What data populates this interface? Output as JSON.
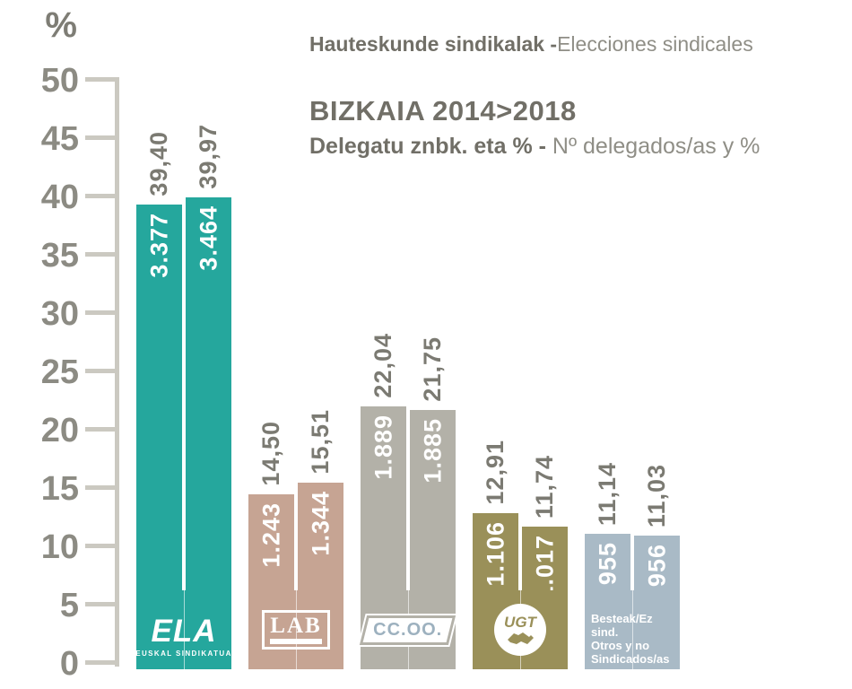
{
  "axis": {
    "unit": "%",
    "ticks": [
      "50",
      "45",
      "40",
      "35",
      "30",
      "25",
      "20",
      "15",
      "10",
      "5",
      "0"
    ]
  },
  "header": {
    "line1_bold": "Hauteskunde sindikalak -",
    "line1_regular": "Elecciones sindicales",
    "title": "BIZKAIA 2014>2018",
    "subtitle_bold": "Delegatu znbk. eta % - ",
    "subtitle_regular": "Nº delegados/as y %"
  },
  "chart_data": {
    "type": "bar",
    "title": "BIZKAIA 2014>2018",
    "subtitle": "Delegatu znbk. eta % - Nº delegados/as y %",
    "caption": "Hauteskunde sindikalak - Elecciones sindicales",
    "ylabel": "%",
    "ylim": [
      0,
      50
    ],
    "yticks": [
      50,
      45,
      40,
      35,
      30,
      25,
      20,
      15,
      10,
      5,
      0
    ],
    "grid": false,
    "legend": "none",
    "categories": [
      "ELA",
      "LAB",
      "CC.OO.",
      "UGT",
      "Besteak/Ez sind. Otros y no Sindicados/as"
    ],
    "series": [
      {
        "name": "2014",
        "percent": [
          39.4,
          14.5,
          22.04,
          12.91,
          11.14
        ],
        "delegates": [
          3377,
          1243,
          1889,
          1106,
          955
        ]
      },
      {
        "name": "2018",
        "percent": [
          39.97,
          15.51,
          21.75,
          11.74,
          11.03
        ],
        "delegates": [
          3464,
          1344,
          1885,
          1017,
          956
        ]
      }
    ],
    "groups": [
      {
        "union": "ELA",
        "color": "#25a79d",
        "logo": "ela",
        "bars": [
          {
            "year": 2014,
            "percent": 39.4,
            "percent_label": "39,40",
            "delegates": 3377,
            "delegates_label": "3.377"
          },
          {
            "year": 2018,
            "percent": 39.97,
            "percent_label": "39,97",
            "delegates": 3464,
            "delegates_label": "3.464"
          }
        ]
      },
      {
        "union": "LAB",
        "color": "#c6a493",
        "logo": "lab",
        "bars": [
          {
            "year": 2014,
            "percent": 14.5,
            "percent_label": "14,50",
            "delegates": 1243,
            "delegates_label": "1.243"
          },
          {
            "year": 2018,
            "percent": 15.51,
            "percent_label": "15,51",
            "delegates": 1344,
            "delegates_label": "1.344"
          }
        ]
      },
      {
        "union": "CC.OO.",
        "color": "#b3b1a8",
        "logo": "ccoo",
        "bars": [
          {
            "year": 2014,
            "percent": 22.04,
            "percent_label": "22,04",
            "delegates": 1889,
            "delegates_label": "1.889"
          },
          {
            "year": 2018,
            "percent": 21.75,
            "percent_label": "21,75",
            "delegates": 1885,
            "delegates_label": "1.885"
          }
        ]
      },
      {
        "union": "UGT",
        "color": "#9a9059",
        "logo": "ugt",
        "bars": [
          {
            "year": 2014,
            "percent": 12.91,
            "percent_label": "12,91",
            "delegates": 1106,
            "delegates_label": "1.106"
          },
          {
            "year": 2018,
            "percent": 11.74,
            "percent_label": "11,74",
            "delegates": 1017,
            "delegates_label": "1.017"
          }
        ]
      },
      {
        "union": "Besteak/Ez sind.",
        "color": "#a9bac6",
        "logo": "besteak",
        "bars": [
          {
            "year": 2014,
            "percent": 11.14,
            "percent_label": "11,14",
            "delegates": 955,
            "delegates_label": "955"
          },
          {
            "year": 2018,
            "percent": 11.03,
            "percent_label": "11,03",
            "delegates": 956,
            "delegates_label": "956"
          }
        ]
      }
    ]
  },
  "logos": {
    "ela": {
      "title": "ELA",
      "subtitle": "EUSKAL SINDIKATUA"
    },
    "lab": {
      "title": "LAB"
    },
    "ccoo": {
      "title": "CC.OO.",
      "text_color": "#9db1bf"
    },
    "ugt": {
      "title": "UGT"
    },
    "besteak": {
      "lines": [
        "Besteak/Ez sind.",
        "Otros y  no",
        "Sindicados/as"
      ]
    }
  },
  "colors": {
    "axis_line": "#cbc9c1",
    "axis_text": "#8c8b83",
    "percent_label": "#7b7a72",
    "title_dark": "#716f67",
    "title_light": "#8f8e86",
    "background": "#ffffff"
  }
}
